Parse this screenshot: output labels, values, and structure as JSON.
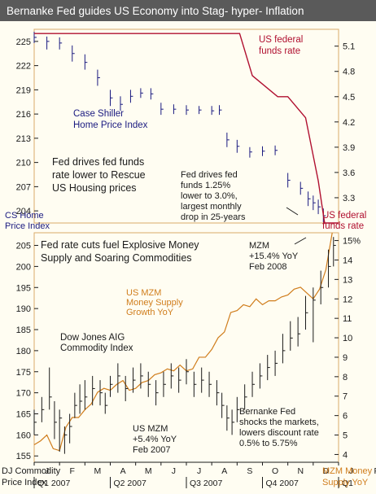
{
  "title": "Bernanke Fed guides US Economy into Stag- hyper- Inflation",
  "colors": {
    "navy": "#1a1a80",
    "red": "#b01030",
    "orange": "#d07d1c",
    "black": "#1a1a1a",
    "frame": "#d9aa6a",
    "background": "#fffdf2",
    "title_bar": "#5a5a5a"
  },
  "chart_data": [
    {
      "type": "line",
      "panel": "top",
      "left_axis": {
        "label_lines": [
          "CS Home",
          "Price Index"
        ],
        "ticks": [
          204,
          207,
          210,
          213,
          216,
          219,
          222,
          225
        ],
        "ylim": [
          202.5,
          226.5
        ]
      },
      "right_axis": {
        "label_lines": [
          "US federal",
          "funds rate"
        ],
        "ticks": [
          "3.3",
          "3.6",
          "3.9",
          "4.2",
          "4.5",
          "4.8",
          "5.1"
        ],
        "ylim": [
          3.0,
          5.3
        ]
      },
      "annotations": {
        "fed_rate_series": [
          "US federal",
          "funds rate"
        ],
        "case_shiller": [
          "Case Shiller",
          "Home Price Index"
        ],
        "rescue": [
          "Fed drives fed funds",
          "rate lower to Rescue",
          "US Housing prices"
        ],
        "drop": [
          "Fed drives fed",
          "funds 1.25%",
          "lower to 3.0%,",
          "largest monthly",
          "drop in 25-years"
        ]
      },
      "series": [
        {
          "name": "Case Shiller Home Price Index",
          "color": "#1a1a80",
          "points": [
            [
              0.0,
              225.5
            ],
            [
              0.5,
              225.0
            ],
            [
              1.0,
              224.8
            ],
            [
              1.5,
              223.5
            ],
            [
              2.0,
              222.4
            ],
            [
              2.5,
              220.5
            ],
            [
              3.0,
              218.0
            ],
            [
              3.4,
              217.2
            ],
            [
              3.8,
              218.2
            ],
            [
              4.2,
              218.6
            ],
            [
              4.6,
              218.5
            ],
            [
              5.0,
              216.6
            ],
            [
              5.5,
              216.6
            ],
            [
              6.0,
              216.5
            ],
            [
              6.5,
              216.5
            ],
            [
              7.0,
              216.4
            ],
            [
              7.3,
              216.5
            ],
            [
              7.6,
              212.8
            ],
            [
              8.0,
              212.0
            ],
            [
              8.5,
              211.3
            ],
            [
              9.0,
              211.4
            ],
            [
              9.5,
              211.5
            ],
            [
              10.0,
              207.8
            ],
            [
              10.5,
              206.8
            ],
            [
              10.8,
              205.5
            ],
            [
              11.0,
              205.0
            ],
            [
              11.2,
              204.5
            ],
            [
              11.4,
              203.4
            ]
          ],
          "ranges": [
            [
              0.0,
              226.2,
              224.8
            ],
            [
              0.5,
              225.6,
              224.0
            ],
            [
              1.0,
              225.5,
              224.0
            ],
            [
              1.5,
              224.5,
              222.5
            ],
            [
              2.0,
              223.4,
              221.5
            ],
            [
              2.5,
              221.5,
              219.5
            ],
            [
              3.0,
              219.0,
              217.0
            ],
            [
              3.4,
              218.2,
              216.4
            ],
            [
              3.8,
              219.0,
              217.4
            ],
            [
              4.2,
              219.2,
              218.0
            ],
            [
              4.6,
              219.2,
              217.8
            ],
            [
              5.0,
              217.4,
              215.9
            ],
            [
              5.5,
              217.2,
              216.0
            ],
            [
              6.0,
              217.1,
              215.9
            ],
            [
              6.5,
              217.0,
              216.0
            ],
            [
              7.0,
              217.0,
              215.9
            ],
            [
              7.3,
              217.1,
              215.9
            ],
            [
              7.6,
              213.7,
              211.9
            ],
            [
              8.0,
              212.8,
              211.2
            ],
            [
              8.5,
              211.9,
              210.6
            ],
            [
              9.0,
              212.0,
              210.8
            ],
            [
              9.5,
              212.1,
              210.9
            ],
            [
              10.0,
              208.7,
              206.9
            ],
            [
              10.5,
              207.6,
              206.0
            ],
            [
              10.8,
              206.4,
              204.6
            ],
            [
              11.0,
              205.9,
              204.1
            ],
            [
              11.2,
              205.4,
              203.6
            ],
            [
              11.4,
              204.3,
              202.6
            ]
          ]
        },
        {
          "name": "US federal funds rate",
          "color": "#b01030",
          "points": [
            [
              0.0,
              5.25
            ],
            [
              8.1,
              5.25
            ],
            [
              8.6,
              4.75
            ],
            [
              9.6,
              4.5
            ],
            [
              10.0,
              4.5
            ],
            [
              10.7,
              4.25
            ],
            [
              11.2,
              3.5
            ],
            [
              11.45,
              3.0
            ],
            [
              12.0,
              3.0
            ]
          ]
        }
      ]
    },
    {
      "type": "line",
      "panel": "bottom",
      "left_axis": {
        "label_lines": [
          "DJ Commodity",
          "Price Index"
        ],
        "ticks": [
          155,
          160,
          165,
          170,
          175,
          180,
          185,
          190,
          195,
          200,
          205
        ],
        "ylim": [
          153.5,
          208
        ]
      },
      "right_axis": {
        "label_lines": [
          "MZM Money",
          "Supply YoY"
        ],
        "ticks": [
          "4",
          "5",
          "6",
          "7",
          "8",
          "9",
          "10",
          "11",
          "12",
          "13",
          "14",
          "15%"
        ],
        "ylim": [
          3.6,
          15.4
        ]
      },
      "x_axis": {
        "months": [
          "J",
          "F",
          "M",
          "A",
          "M",
          "J",
          "J",
          "A",
          "S",
          "O",
          "N",
          "D",
          "J",
          "F"
        ],
        "quarters": [
          "Q1 2007",
          "Q2 2007",
          "Q3 2007",
          "Q4 2007",
          "Q1"
        ]
      },
      "annotations": {
        "headline": [
          "Fed rate cuts fuel Explosive Money",
          "Supply and Soaring Commodities"
        ],
        "mzm_series": [
          "US MZM",
          "Money Supply",
          "Growth YoY"
        ],
        "commodity_series": [
          "Dow Jones AIG",
          "Commodity Index"
        ],
        "mzm_feb2008": [
          "MZM",
          "+15.4% YoY",
          "Feb 2008"
        ],
        "mzm_feb2007": [
          "US MZM",
          "+5.4% YoY",
          "Feb 2007"
        ],
        "discount_rate": [
          "Bernanke Fed",
          "shocks the markets,",
          "lowers discount rate",
          "0.5% to 5.75%"
        ]
      },
      "series": [
        {
          "name": "Dow Jones AIG Commodity Index",
          "color": "#1a1a1a",
          "points": [
            [
              0.0,
              163
            ],
            [
              0.3,
              166
            ],
            [
              0.6,
              169
            ],
            [
              0.8,
              163
            ],
            [
              1.0,
              164
            ],
            [
              1.2,
              160
            ],
            [
              1.4,
              162
            ],
            [
              1.6,
              167
            ],
            [
              1.8,
              168
            ],
            [
              2.0,
              169
            ],
            [
              2.3,
              171
            ],
            [
              2.6,
              170
            ],
            [
              2.8,
              167
            ],
            [
              3.0,
              172
            ],
            [
              3.3,
              174
            ],
            [
              3.6,
              171
            ],
            [
              3.9,
              173
            ],
            [
              4.2,
              174
            ],
            [
              4.5,
              172
            ],
            [
              4.8,
              170
            ],
            [
              5.1,
              172
            ],
            [
              5.4,
              174
            ],
            [
              5.7,
              173
            ],
            [
              6.0,
              175
            ],
            [
              6.3,
              172
            ],
            [
              6.6,
              173
            ],
            [
              6.9,
              172
            ],
            [
              7.2,
              170
            ],
            [
              7.4,
              167
            ],
            [
              7.6,
              164
            ],
            [
              7.8,
              163
            ],
            [
              8.0,
              166
            ],
            [
              8.3,
              169
            ],
            [
              8.6,
              172
            ],
            [
              8.9,
              174
            ],
            [
              9.2,
              176
            ],
            [
              9.5,
              177
            ],
            [
              9.8,
              180
            ],
            [
              10.1,
              183
            ],
            [
              10.4,
              184
            ],
            [
              10.7,
              189
            ],
            [
              11.0,
              192
            ],
            [
              11.3,
              195
            ],
            [
              11.6,
              200
            ],
            [
              11.8,
              205
            ]
          ],
          "ranges": [
            [
              0.0,
              166,
              160
            ],
            [
              0.3,
              169,
              163
            ],
            [
              0.6,
              176,
              166
            ],
            [
              0.8,
              168,
              159
            ],
            [
              1.0,
              166,
              156
            ],
            [
              1.2,
              162,
              155.5
            ],
            [
              1.4,
              165,
              158
            ],
            [
              1.6,
              170,
              164
            ],
            [
              1.8,
              172,
              165
            ],
            [
              2.0,
              173,
              166
            ],
            [
              2.3,
              174,
              167
            ],
            [
              2.6,
              173,
              167
            ],
            [
              2.8,
              170,
              165
            ],
            [
              3.0,
              174,
              169
            ],
            [
              3.3,
              177,
              170
            ],
            [
              3.6,
              174,
              168
            ],
            [
              3.9,
              176,
              170
            ],
            [
              4.2,
              177,
              171
            ],
            [
              4.5,
              175,
              169
            ],
            [
              4.8,
              173,
              167
            ],
            [
              5.1,
              175,
              169
            ],
            [
              5.4,
              177,
              171
            ],
            [
              5.7,
              176,
              170
            ],
            [
              6.0,
              178,
              172
            ],
            [
              6.3,
              175,
              169
            ],
            [
              6.6,
              176,
              170
            ],
            [
              6.9,
              175,
              169
            ],
            [
              7.2,
              173,
              167
            ],
            [
              7.4,
              170,
              164
            ],
            [
              7.6,
              167,
              161
            ],
            [
              7.8,
              166,
              160
            ],
            [
              8.0,
              169,
              163
            ],
            [
              8.3,
              172,
              166
            ],
            [
              8.6,
              175,
              169
            ],
            [
              8.9,
              177,
              171
            ],
            [
              9.2,
              179,
              173
            ],
            [
              9.5,
              180,
              174
            ],
            [
              9.8,
              184,
              177
            ],
            [
              10.1,
              187,
              180
            ],
            [
              10.4,
              188,
              181
            ],
            [
              10.7,
              193,
              185
            ],
            [
              11.0,
              195,
              182
            ],
            [
              11.3,
              199,
              191
            ],
            [
              11.6,
              204,
              195
            ],
            [
              11.8,
              207,
              200
            ]
          ]
        },
        {
          "name": "US MZM Money Supply Growth YoY",
          "color": "#d07d1c",
          "points": [
            [
              0.0,
              4.5
            ],
            [
              0.25,
              4.7
            ],
            [
              0.5,
              5.0
            ],
            [
              0.75,
              4.3
            ],
            [
              1.0,
              4.2
            ],
            [
              1.25,
              5.4
            ],
            [
              1.5,
              5.9
            ],
            [
              1.75,
              5.9
            ],
            [
              2.0,
              6.3
            ],
            [
              2.25,
              6.6
            ],
            [
              2.5,
              7.2
            ],
            [
              2.75,
              7.4
            ],
            [
              3.0,
              7.3
            ],
            [
              3.25,
              7.6
            ],
            [
              3.5,
              7.8
            ],
            [
              3.75,
              7.3
            ],
            [
              4.0,
              7.4
            ],
            [
              4.25,
              7.7
            ],
            [
              4.5,
              7.8
            ],
            [
              4.75,
              8.1
            ],
            [
              5.0,
              8.2
            ],
            [
              5.25,
              8.4
            ],
            [
              5.5,
              8.3
            ],
            [
              5.75,
              8.6
            ],
            [
              6.0,
              8.3
            ],
            [
              6.25,
              8.4
            ],
            [
              6.5,
              9.0
            ],
            [
              6.75,
              9.0
            ],
            [
              7.0,
              9.4
            ],
            [
              7.25,
              10.0
            ],
            [
              7.5,
              10.3
            ],
            [
              7.75,
              11.3
            ],
            [
              8.0,
              11.4
            ],
            [
              8.25,
              11.7
            ],
            [
              8.5,
              11.6
            ],
            [
              8.75,
              12.0
            ],
            [
              9.0,
              11.7
            ],
            [
              9.25,
              11.9
            ],
            [
              9.5,
              11.9
            ],
            [
              9.75,
              12.1
            ],
            [
              10.0,
              12.2
            ],
            [
              10.25,
              12.5
            ],
            [
              10.5,
              12.6
            ],
            [
              10.75,
              12.3
            ],
            [
              11.0,
              12.0
            ],
            [
              11.25,
              12.5
            ],
            [
              11.5,
              13.5
            ],
            [
              11.75,
              15.4
            ]
          ]
        }
      ]
    }
  ]
}
